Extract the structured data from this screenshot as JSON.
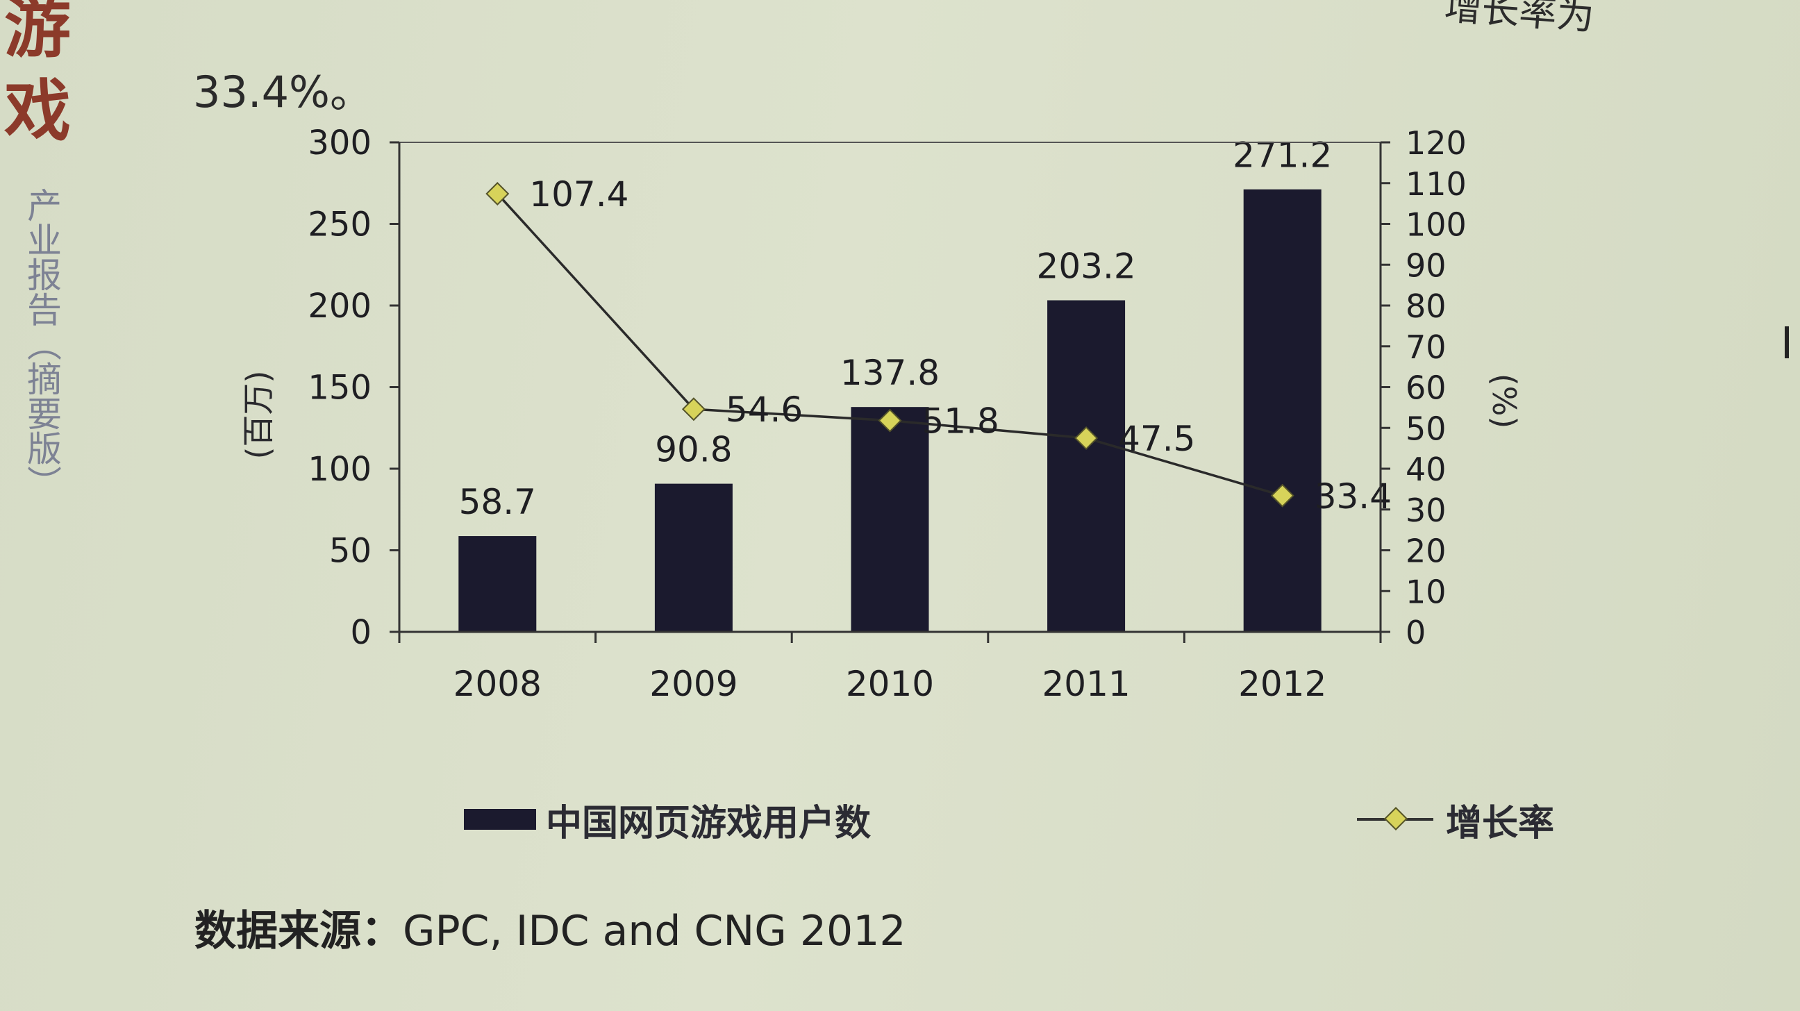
{
  "page": {
    "side_title": "游戏",
    "side_caption": "产业报告（摘要版）",
    "corner_text": "增长率为",
    "intro_text": "33.4%。",
    "source_label": "数据来源：",
    "source_text": "GPC, IDC and CNG 2012"
  },
  "chart_data": {
    "type": "bar+line",
    "categories": [
      "2008",
      "2009",
      "2010",
      "2011",
      "2012"
    ],
    "series": [
      {
        "name": "中国网页游戏用户数",
        "type": "bar",
        "axis": "left",
        "values": [
          58.7,
          90.8,
          137.8,
          203.2,
          271.2
        ],
        "color": "#1b1a2e"
      },
      {
        "name": "增长率",
        "type": "line",
        "axis": "right",
        "values": [
          107.4,
          54.6,
          51.8,
          47.5,
          33.4
        ],
        "color": "#d7d35a"
      }
    ],
    "y_left": {
      "label": "(百万)",
      "ylim": [
        0,
        300
      ],
      "ticks": [
        0,
        50,
        100,
        150,
        200,
        250,
        300
      ]
    },
    "y_right": {
      "label": "(%)",
      "ylim": [
        0,
        120
      ],
      "ticks": [
        0,
        10,
        20,
        30,
        40,
        50,
        60,
        70,
        80,
        90,
        100,
        110,
        120
      ]
    },
    "legend_position": "bottom"
  }
}
